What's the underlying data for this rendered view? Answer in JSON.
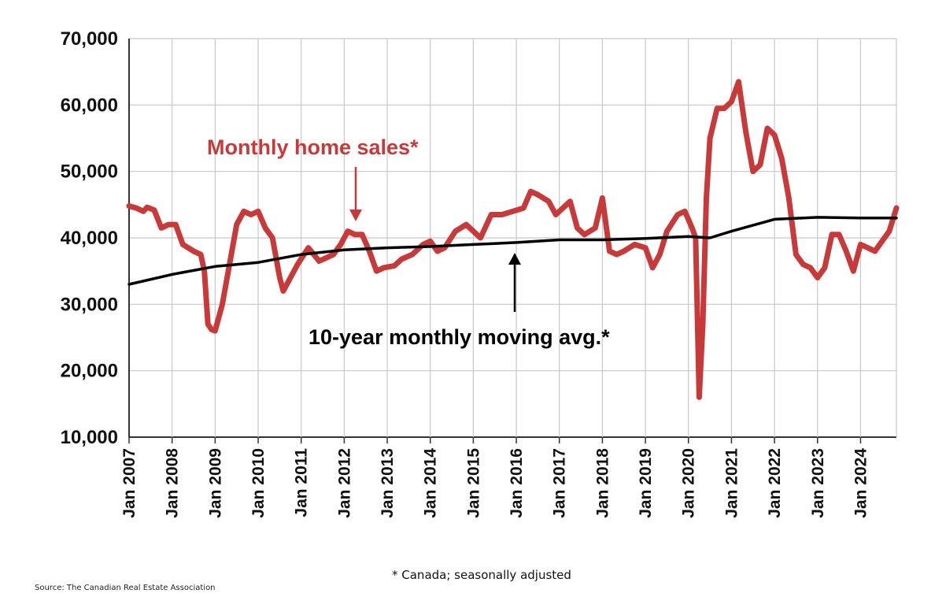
{
  "chart_data": {
    "type": "line",
    "title": "",
    "xlabel": "",
    "ylabel": "",
    "ylim": [
      10000,
      70000
    ],
    "yticks": [
      10000,
      20000,
      30000,
      40000,
      50000,
      60000,
      70000
    ],
    "ytick_labels": [
      "10,000",
      "20,000",
      "30,000",
      "40,000",
      "50,000",
      "60,000",
      "70,000"
    ],
    "xlim": [
      "2007-01",
      "2024-11"
    ],
    "xtick_labels": [
      "Jan 2007",
      "Jan 2008",
      "Jan 2009",
      "Jan 2010",
      "Jan 2011",
      "Jan 2012",
      "Jan 2013",
      "Jan 2014",
      "Jan 2015",
      "Jan 2016",
      "Jan 2017",
      "Jan 2018",
      "Jan 2019",
      "Jan 2020",
      "Jan 2021",
      "Jan 2022",
      "Jan 2023",
      "Jan 2024"
    ],
    "grid": true,
    "legend": "none",
    "colors": {
      "sales": "#c83a3a",
      "average": "#000000"
    },
    "series": [
      {
        "name": "Monthly home sales*",
        "color": "#c83a3a",
        "points": [
          [
            "2007-01",
            44800
          ],
          [
            "2007-03",
            44500
          ],
          [
            "2007-05",
            44000
          ],
          [
            "2007-06",
            44600
          ],
          [
            "2007-08",
            44200
          ],
          [
            "2007-10",
            41500
          ],
          [
            "2007-12",
            42000
          ],
          [
            "2008-02",
            42000
          ],
          [
            "2008-04",
            39000
          ],
          [
            "2008-07",
            38000
          ],
          [
            "2008-09",
            37500
          ],
          [
            "2008-10",
            35000
          ],
          [
            "2008-11",
            27000
          ],
          [
            "2008-12",
            26200
          ],
          [
            "2009-01",
            26000
          ],
          [
            "2009-03",
            30000
          ],
          [
            "2009-05",
            36000
          ],
          [
            "2009-07",
            42000
          ],
          [
            "2009-09",
            44000
          ],
          [
            "2009-11",
            43500
          ],
          [
            "2010-01",
            44000
          ],
          [
            "2010-03",
            41500
          ],
          [
            "2010-05",
            40000
          ],
          [
            "2010-07",
            34000
          ],
          [
            "2010-08",
            32000
          ],
          [
            "2010-10",
            34000
          ],
          [
            "2010-12",
            36000
          ],
          [
            "2011-03",
            38500
          ],
          [
            "2011-06",
            36500
          ],
          [
            "2011-08",
            37000
          ],
          [
            "2011-10",
            37500
          ],
          [
            "2011-12",
            39000
          ],
          [
            "2012-02",
            41000
          ],
          [
            "2012-04",
            40500
          ],
          [
            "2012-06",
            40500
          ],
          [
            "2012-08",
            38000
          ],
          [
            "2012-10",
            35000
          ],
          [
            "2012-12",
            35500
          ],
          [
            "2013-03",
            35800
          ],
          [
            "2013-05",
            36800
          ],
          [
            "2013-08",
            37500
          ],
          [
            "2013-11",
            39000
          ],
          [
            "2014-01",
            39500
          ],
          [
            "2014-03",
            38000
          ],
          [
            "2014-05",
            38500
          ],
          [
            "2014-08",
            41000
          ],
          [
            "2014-11",
            42000
          ],
          [
            "2015-03",
            40000
          ],
          [
            "2015-06",
            43500
          ],
          [
            "2015-09",
            43500
          ],
          [
            "2015-12",
            44000
          ],
          [
            "2016-03",
            44500
          ],
          [
            "2016-05",
            47000
          ],
          [
            "2016-07",
            46500
          ],
          [
            "2016-10",
            45500
          ],
          [
            "2016-12",
            43500
          ],
          [
            "2017-02",
            44500
          ],
          [
            "2017-04",
            45500
          ],
          [
            "2017-06",
            41500
          ],
          [
            "2017-08",
            40500
          ],
          [
            "2017-11",
            41500
          ],
          [
            "2018-01",
            46000
          ],
          [
            "2018-03",
            38000
          ],
          [
            "2018-05",
            37500
          ],
          [
            "2018-07",
            38000
          ],
          [
            "2018-10",
            39000
          ],
          [
            "2019-01",
            38500
          ],
          [
            "2019-03",
            35500
          ],
          [
            "2019-05",
            37500
          ],
          [
            "2019-07",
            41000
          ],
          [
            "2019-10",
            43500
          ],
          [
            "2019-12",
            44000
          ],
          [
            "2020-02",
            41500
          ],
          [
            "2020-03",
            40000
          ],
          [
            "2020-04",
            16000
          ],
          [
            "2020-05",
            27000
          ],
          [
            "2020-06",
            46000
          ],
          [
            "2020-07",
            55000
          ],
          [
            "2020-09",
            59500
          ],
          [
            "2020-11",
            59500
          ],
          [
            "2021-01",
            60500
          ],
          [
            "2021-03",
            63500
          ],
          [
            "2021-05",
            56000
          ],
          [
            "2021-07",
            50000
          ],
          [
            "2021-09",
            51000
          ],
          [
            "2021-11",
            56500
          ],
          [
            "2022-01",
            55500
          ],
          [
            "2022-03",
            52000
          ],
          [
            "2022-05",
            46000
          ],
          [
            "2022-07",
            37500
          ],
          [
            "2022-09",
            36000
          ],
          [
            "2022-11",
            35500
          ],
          [
            "2023-01",
            34000
          ],
          [
            "2023-03",
            35500
          ],
          [
            "2023-05",
            40500
          ],
          [
            "2023-07",
            40500
          ],
          [
            "2023-09",
            38000
          ],
          [
            "2023-11",
            35000
          ],
          [
            "2024-01",
            39000
          ],
          [
            "2024-03",
            38500
          ],
          [
            "2024-05",
            38000
          ],
          [
            "2024-07",
            39500
          ],
          [
            "2024-09",
            41000
          ],
          [
            "2024-11",
            44500
          ]
        ]
      },
      {
        "name": "10-year monthly moving avg.*",
        "color": "#000000",
        "points": [
          [
            "2007-01",
            33000
          ],
          [
            "2008-01",
            34500
          ],
          [
            "2009-01",
            35700
          ],
          [
            "2010-01",
            36300
          ],
          [
            "2011-01",
            37500
          ],
          [
            "2012-01",
            38200
          ],
          [
            "2013-01",
            38500
          ],
          [
            "2014-01",
            38700
          ],
          [
            "2015-01",
            39000
          ],
          [
            "2016-01",
            39300
          ],
          [
            "2017-01",
            39700
          ],
          [
            "2018-01",
            39700
          ],
          [
            "2019-01",
            39900
          ],
          [
            "2020-01",
            40200
          ],
          [
            "2020-07",
            40000
          ],
          [
            "2021-01",
            41000
          ],
          [
            "2022-01",
            42800
          ],
          [
            "2023-01",
            43100
          ],
          [
            "2024-01",
            43000
          ],
          [
            "2024-11",
            43000
          ]
        ]
      }
    ],
    "annotations": [
      {
        "text": "Monthly home sales*",
        "color": "#c83a3a"
      },
      {
        "text": "10-year monthly moving avg.*",
        "color": "#000000"
      }
    ],
    "footnote": "* Canada; seasonally adjusted",
    "source": "Source: The Canadian Real Estate Association"
  }
}
